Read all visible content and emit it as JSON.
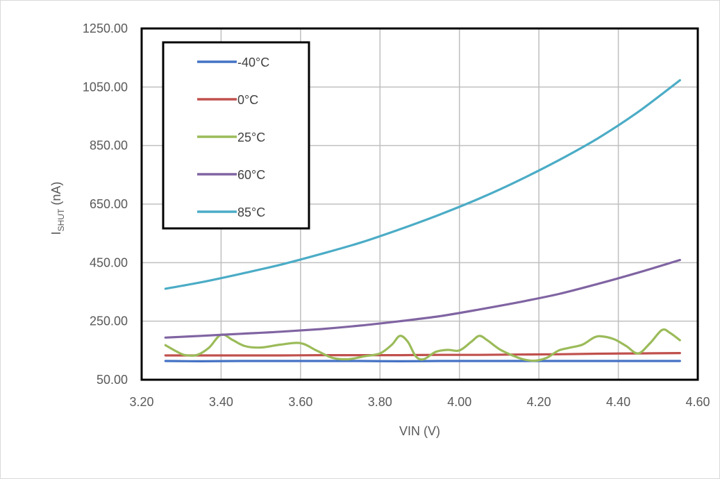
{
  "chart_data": {
    "type": "line",
    "title": "",
    "xlabel": "VIN (V)",
    "ylabel": {
      "main": "I",
      "sub": "SHUT",
      "suffix": " (nA)"
    },
    "xlim": [
      3.2,
      4.6
    ],
    "ylim": [
      50,
      1250
    ],
    "xticks": [
      "3.20",
      "3.40",
      "3.60",
      "3.80",
      "4.00",
      "4.20",
      "4.40",
      "4.60"
    ],
    "yticks": [
      "50.00",
      "250.00",
      "450.00",
      "650.00",
      "850.00",
      "1050.00",
      "1250.00"
    ],
    "xtick_values": [
      3.2,
      3.4,
      3.6,
      3.8,
      4.0,
      4.2,
      4.4,
      4.6
    ],
    "ytick_values": [
      50,
      250,
      450,
      650,
      850,
      1050,
      1250
    ],
    "grid": true,
    "legend_position": "top-left",
    "series": [
      {
        "name": "-40°C",
        "color": "#4472C4",
        "x": [
          3.26,
          3.35,
          3.45,
          3.55,
          3.65,
          3.75,
          3.85,
          3.95,
          4.05,
          4.15,
          4.25,
          4.35,
          4.45,
          4.555
        ],
        "y": [
          114,
          113,
          114,
          114,
          114,
          114,
          113,
          114,
          114,
          114,
          114,
          114,
          114,
          114
        ]
      },
      {
        "name": "0°C",
        "color": "#C0504D",
        "x": [
          3.26,
          3.35,
          3.45,
          3.55,
          3.65,
          3.75,
          3.85,
          3.95,
          4.05,
          4.15,
          4.25,
          4.35,
          4.45,
          4.555
        ],
        "y": [
          133,
          133,
          133,
          133,
          134,
          134,
          134,
          135,
          135,
          136,
          137,
          139,
          140,
          141
        ]
      },
      {
        "name": "25°C",
        "color": "#9BBB59",
        "x": [
          3.26,
          3.29,
          3.31,
          3.34,
          3.37,
          3.4,
          3.43,
          3.46,
          3.5,
          3.55,
          3.6,
          3.64,
          3.68,
          3.72,
          3.76,
          3.8,
          3.83,
          3.85,
          3.87,
          3.89,
          3.91,
          3.94,
          3.97,
          4.0,
          4.03,
          4.05,
          4.07,
          4.1,
          4.13,
          4.16,
          4.19,
          4.22,
          4.25,
          4.28,
          4.31,
          4.34,
          4.36,
          4.39,
          4.42,
          4.45,
          4.48,
          4.51,
          4.53,
          4.555
        ],
        "y": [
          168,
          145,
          134,
          135,
          160,
          204,
          185,
          165,
          160,
          170,
          175,
          150,
          125,
          120,
          130,
          140,
          170,
          200,
          180,
          130,
          120,
          145,
          152,
          150,
          180,
          200,
          185,
          155,
          135,
          120,
          115,
          125,
          150,
          160,
          170,
          195,
          198,
          188,
          165,
          140,
          175,
          220,
          210,
          185
        ]
      },
      {
        "name": "60°C",
        "color": "#8064A2",
        "x": [
          3.26,
          3.35,
          3.45,
          3.55,
          3.65,
          3.75,
          3.85,
          3.95,
          4.05,
          4.15,
          4.25,
          4.35,
          4.45,
          4.555
        ],
        "y": [
          194,
          200,
          207,
          214,
          223,
          235,
          250,
          267,
          290,
          315,
          343,
          378,
          416,
          459
        ]
      },
      {
        "name": "85°C",
        "color": "#4BACC6",
        "x": [
          3.26,
          3.35,
          3.45,
          3.55,
          3.65,
          3.75,
          3.85,
          3.95,
          4.05,
          4.15,
          4.25,
          4.35,
          4.45,
          4.555
        ],
        "y": [
          361,
          383,
          412,
          443,
          479,
          518,
          564,
          614,
          669,
          731,
          800,
          876,
          965,
          1073
        ]
      }
    ]
  }
}
